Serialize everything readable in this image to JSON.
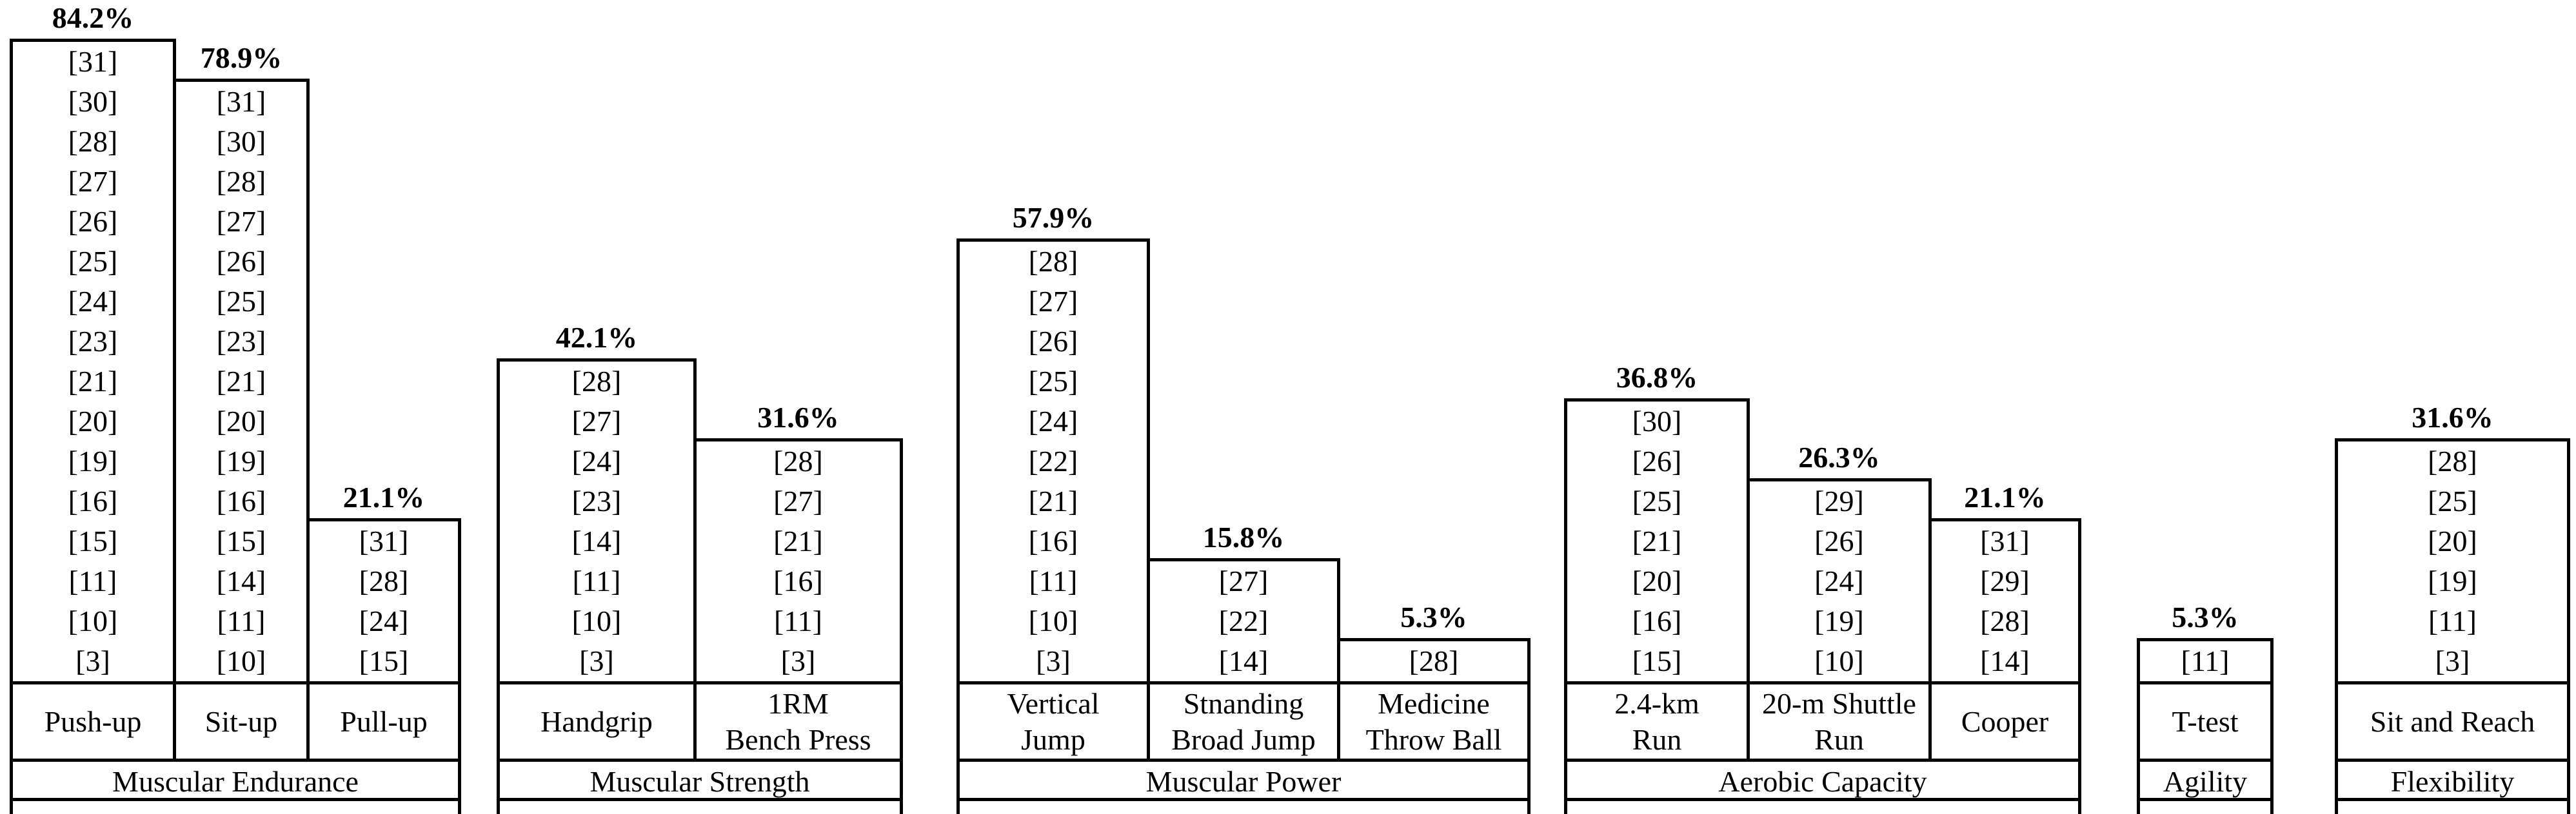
{
  "colors": {
    "text": "#000000",
    "line": "#000000",
    "background": "#ffffff"
  },
  "chart_data": {
    "type": "bar",
    "title": "",
    "xlabel": "",
    "ylabel": "",
    "value_unit": "%",
    "ylim": [
      0,
      100
    ],
    "grid": false,
    "legend": "none",
    "categories": [
      "Push-up",
      "Sit-up",
      "Pull-up",
      "Handgrip",
      "1RM Bench Press",
      "Vertical Jump",
      "Stnanding Broad Jump",
      "Medicine Throw Ball",
      "2.4-km Run",
      "20-m Shuttle Run",
      "Cooper",
      "T-test",
      "Sit and Reach"
    ],
    "values": [
      84.2,
      78.9,
      21.1,
      42.1,
      31.6,
      57.9,
      15.8,
      5.3,
      36.8,
      26.3,
      21.1,
      5.3,
      31.6
    ],
    "groups": [
      {
        "category": "Muscular Endurance",
        "bars": [
          {
            "label": "Push-up",
            "label_lines": [
              "Push-up"
            ],
            "value": 84.2,
            "value_label": "84.2%",
            "citations": [
              "[31]",
              "[30]",
              "[28]",
              "[27]",
              "[26]",
              "[25]",
              "[24]",
              "[23]",
              "[21]",
              "[20]",
              "[19]",
              "[16]",
              "[15]",
              "[11]",
              "[10]",
              "[3]"
            ]
          },
          {
            "label": "Sit-up",
            "label_lines": [
              "Sit-up"
            ],
            "value": 78.9,
            "value_label": "78.9%",
            "citations": [
              "[31]",
              "[30]",
              "[28]",
              "[27]",
              "[26]",
              "[25]",
              "[23]",
              "[21]",
              "[20]",
              "[19]",
              "[16]",
              "[15]",
              "[14]",
              "[11]",
              "[10]"
            ]
          },
          {
            "label": "Pull-up",
            "label_lines": [
              "Pull-up"
            ],
            "value": 21.1,
            "value_label": "21.1%",
            "citations": [
              "[31]",
              "[28]",
              "[24]",
              "[15]"
            ]
          }
        ]
      },
      {
        "category": "Muscular Strength",
        "bars": [
          {
            "label": "Handgrip",
            "label_lines": [
              "Handgrip"
            ],
            "value": 42.1,
            "value_label": "42.1%",
            "citations": [
              "[28]",
              "[27]",
              "[24]",
              "[23]",
              "[14]",
              "[11]",
              "[10]",
              "[3]"
            ]
          },
          {
            "label": "1RM Bench Press",
            "label_lines": [
              "1RM",
              "Bench Press"
            ],
            "value": 31.6,
            "value_label": "31.6%",
            "citations": [
              "[28]",
              "[27]",
              "[21]",
              "[16]",
              "[11]",
              "[3]"
            ]
          }
        ]
      },
      {
        "category": "Muscular Power",
        "bars": [
          {
            "label": "Vertical Jump",
            "label_lines": [
              "Vertical",
              "Jump"
            ],
            "value": 57.9,
            "value_label": "57.9%",
            "citations": [
              "[28]",
              "[27]",
              "[26]",
              "[25]",
              "[24]",
              "[22]",
              "[21]",
              "[16]",
              "[11]",
              "[10]",
              "[3]"
            ]
          },
          {
            "label": "Stnanding Broad Jump",
            "label_lines": [
              "Stnanding",
              "Broad Jump"
            ],
            "value": 15.8,
            "value_label": "15.8%",
            "citations": [
              "[27]",
              "[22]",
              "[14]"
            ]
          },
          {
            "label": "Medicine Throw Ball",
            "label_lines": [
              "Medicine",
              "Throw Ball"
            ],
            "value": 5.3,
            "value_label": "5.3%",
            "citations": [
              "[28]"
            ]
          }
        ]
      },
      {
        "category": "Aerobic Capacity",
        "bars": [
          {
            "label": "2.4-km Run",
            "label_lines": [
              "2.4-km",
              "Run"
            ],
            "value": 36.8,
            "value_label": "36.8%",
            "citations": [
              "[30]",
              "[26]",
              "[25]",
              "[21]",
              "[20]",
              "[16]",
              "[15]"
            ]
          },
          {
            "label": "20-m Shuttle Run",
            "label_lines": [
              "20-m Shuttle",
              "Run"
            ],
            "value": 26.3,
            "value_label": "26.3%",
            "citations": [
              "[29]",
              "[26]",
              "[24]",
              "[19]",
              "[10]"
            ]
          },
          {
            "label": "Cooper",
            "label_lines": [
              "Cooper"
            ],
            "value": 21.1,
            "value_label": "21.1%",
            "citations": [
              "[31]",
              "[29]",
              "[28]",
              "[14]"
            ]
          }
        ]
      },
      {
        "category": "Agility",
        "bars": [
          {
            "label": "T-test",
            "label_lines": [
              "T-test"
            ],
            "value": 5.3,
            "value_label": "5.3%",
            "citations": [
              "[11]"
            ]
          }
        ]
      },
      {
        "category": "Flexibility",
        "bars": [
          {
            "label": "Sit and Reach",
            "label_lines": [
              "Sit and Reach"
            ],
            "value": 31.6,
            "value_label": "31.6%",
            "citations": [
              "[28]",
              "[25]",
              "[20]",
              "[19]",
              "[11]",
              "[3]"
            ]
          }
        ]
      }
    ]
  }
}
